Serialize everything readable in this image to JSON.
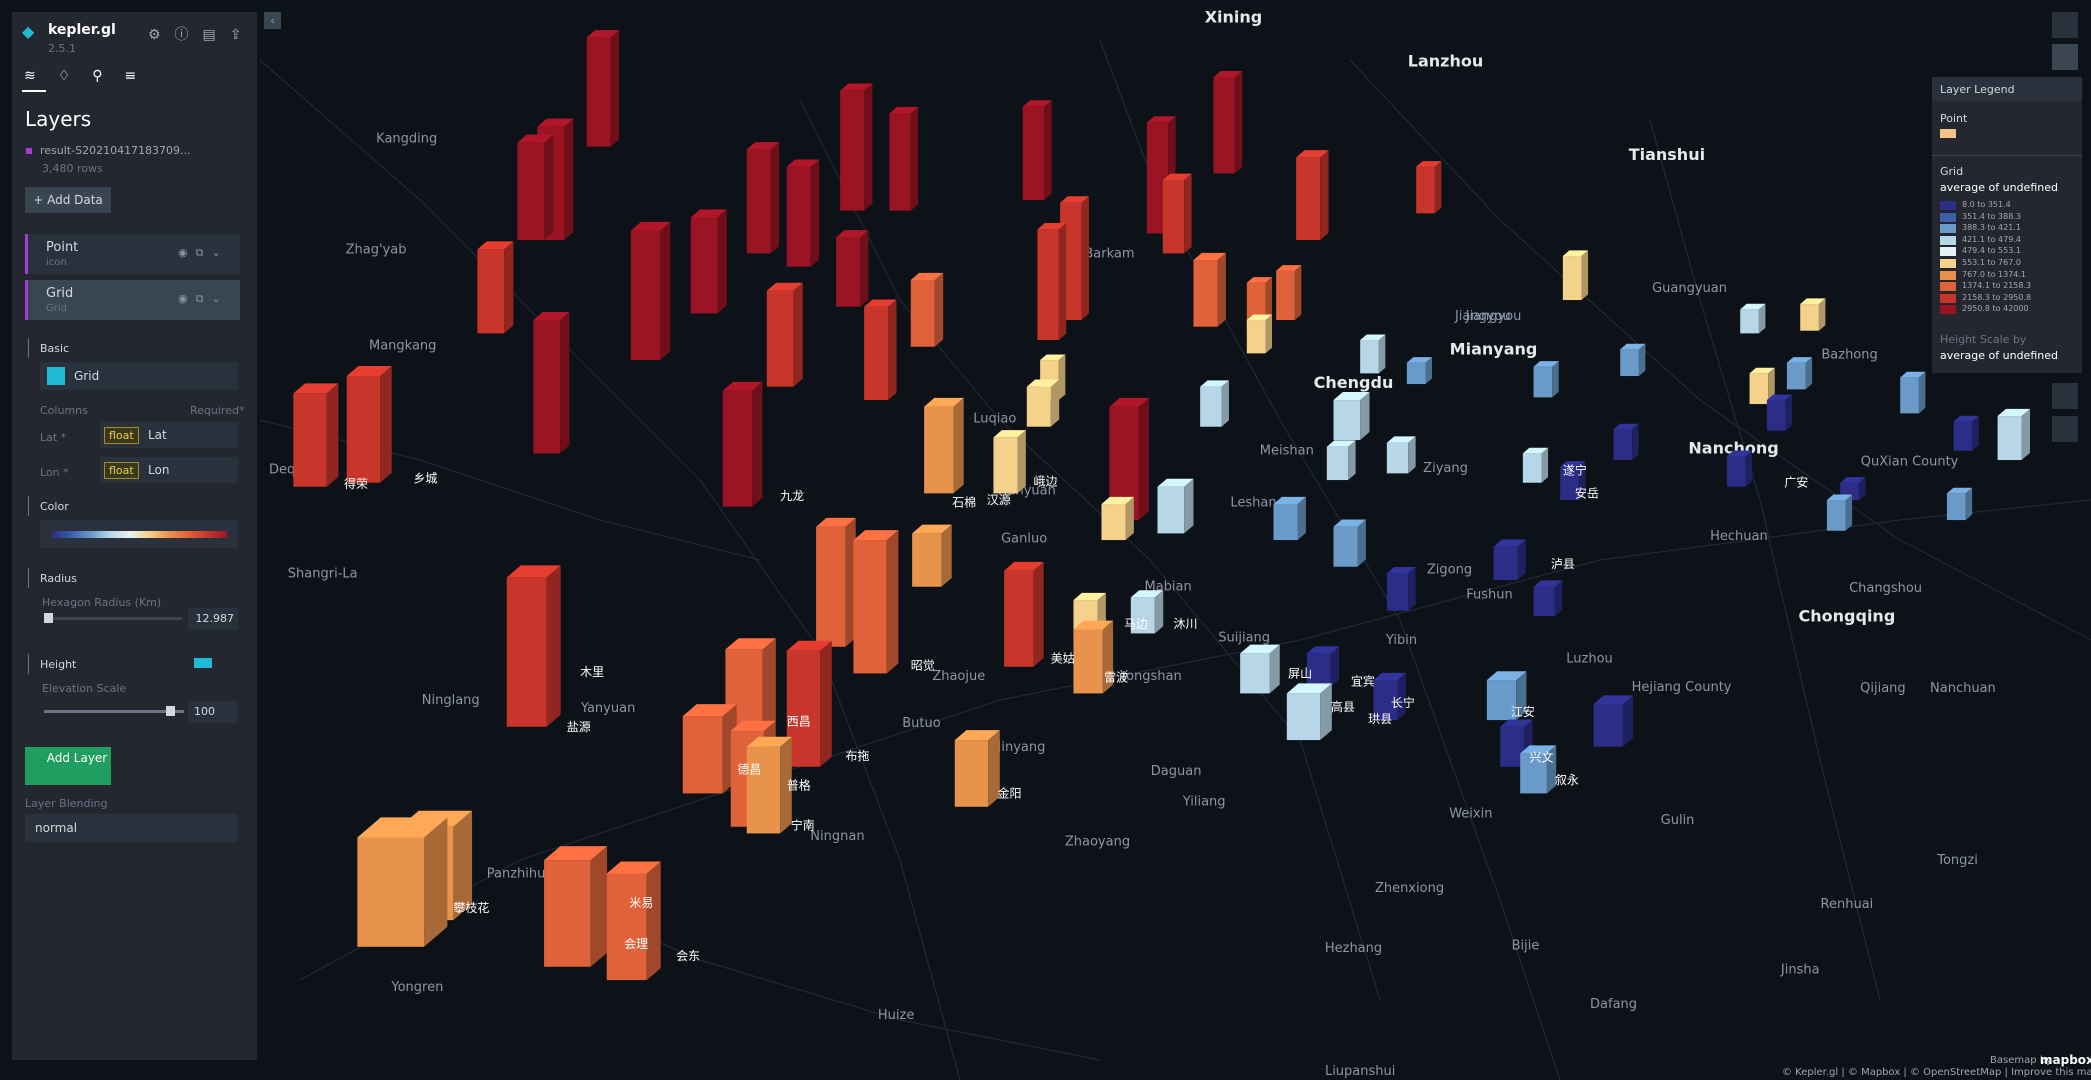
{
  "sidebar": {
    "app_name": "kepler.gl",
    "version": "2.5.1",
    "title": "Layers",
    "dataset": "result-S20210417183709...",
    "rows": "3,480 rows",
    "add_data": "Add Data",
    "layers": [
      {
        "name": "Point",
        "type": "icon"
      },
      {
        "name": "Grid",
        "type": "Grid"
      }
    ],
    "basic": "Basic",
    "layer_type": "Grid",
    "columns": "Columns",
    "required": "Required*",
    "lat_label": "Lat *",
    "lat_type": "float",
    "lat_field": "Lat",
    "lon_label": "Lon *",
    "lon_type": "float",
    "lon_field": "Lon",
    "color": "Color",
    "radius": "Radius",
    "radius_label": "Hexagon Radius (Km)",
    "radius_value": "12.987",
    "height": "Height",
    "elevation_label": "Elevation Scale",
    "elevation_value": "100",
    "add_layer": "Add Layer",
    "blending_label": "Layer Blending",
    "blending_value": "normal"
  },
  "legend": {
    "title": "Layer Legend",
    "point": "Point",
    "grid": "Grid",
    "color_by": "average of undefined",
    "ranges": [
      "8.0 to 351.4",
      "351.4 to 388.3",
      "388.3 to 421.1",
      "421.1 to 479.4",
      "479.4 to 553.1",
      "553.1 to 767.0",
      "767.0 to 1374.1",
      "1374.1 to 2158.3",
      "2158.3 to 2950.8",
      "2950.8 to 42000"
    ],
    "height_label": "Height Scale by",
    "height_by": "average of undefined"
  },
  "map": {
    "labels": [
      "Xining",
      "Lanzhou",
      "Tianshui",
      "Chengdu",
      "Mianyang",
      "Nanchong",
      "Chongqing",
      "Shangri-La",
      "Deqin",
      "Ninglang",
      "Yanyuan",
      "Zhaojue",
      "Butuo",
      "Jinyang",
      "Yongshan",
      "Yibin",
      "Luzhou",
      "Daguan",
      "Yiliang",
      "Zhaoyang",
      "Weixin",
      "Gulin",
      "Zhenxiong",
      "Hezhang",
      "Bijie",
      "Dafang",
      "Huize",
      "Yongren",
      "Panzhihua",
      "Ningnan",
      "Leshan",
      "Meishan",
      "Ziyang",
      "Fushun",
      "Zigong",
      "Suijiang",
      "Mabian",
      "Ganluo",
      "Hanyuan",
      "Luqiao",
      "Barkam",
      "Guangyuan",
      "Bazhong",
      "QuXian County",
      "Hechuan",
      "Changshou",
      "Jiangyou",
      "Hejiang County",
      "Qijiang",
      "Nanchuan",
      "Renhuai",
      "Jinsha",
      "Tongzi",
      "Liupanshui",
      "Kangding",
      "Mangkang",
      "Zhag'yab",
      "Jiangyou"
    ],
    "local_labels": [
      "木里",
      "盐源",
      "西昌",
      "德昌",
      "普格",
      "宁南",
      "会东",
      "米易",
      "会理",
      "攀枝花",
      "金阳",
      "雷波",
      "美姑",
      "昭觉",
      "布拖",
      "乡城",
      "得荣",
      "九龙",
      "石棉",
      "汉源",
      "峨边",
      "沐川",
      "马边",
      "屏山",
      "宜宾",
      "长宁",
      "珙县",
      "高县",
      "江安",
      "兴文",
      "叙永",
      "泸县",
      "安岳",
      "遂宁",
      "广安"
    ],
    "basemap_by": "Basemap by",
    "mapbox": "mapbox",
    "attribution": "© Kepler.gl | © Mapbox | © OpenStreetMap | Improve this map"
  }
}
